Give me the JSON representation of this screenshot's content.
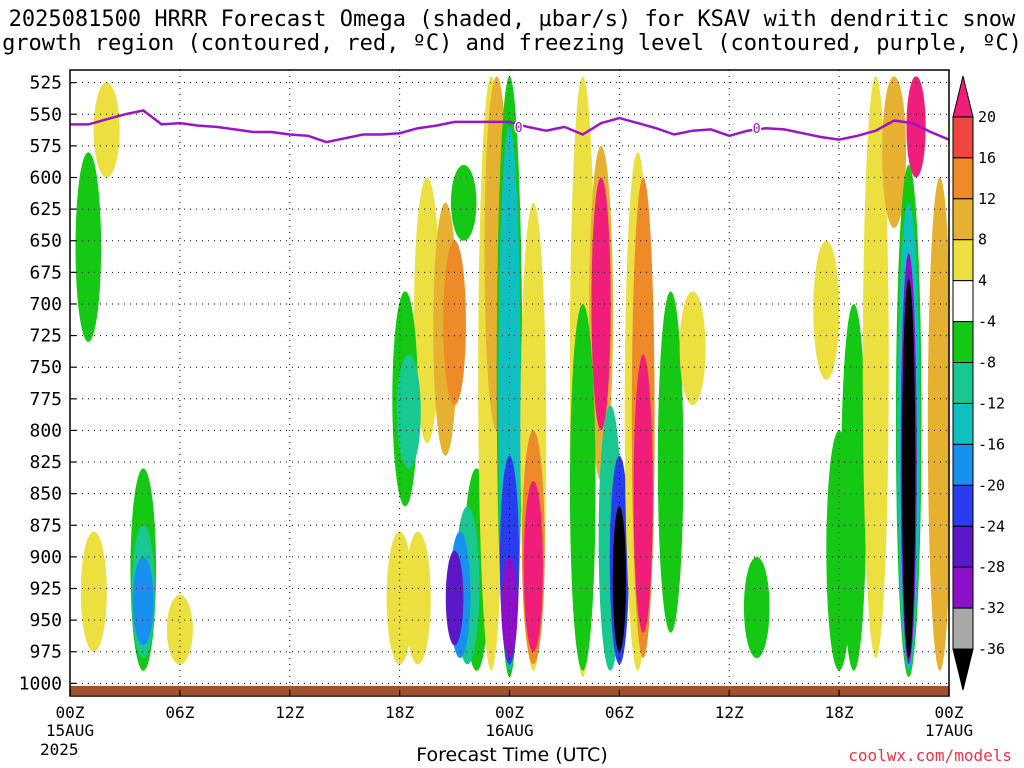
{
  "title_line1": "2025081500 HRRR Forecast Omega (shaded, µbar/s) for KSAV with dendritic snow",
  "title_line2": "growth region (contoured, red, ºC) and freezing level (contoured, purple, ºC)",
  "x_title": "Forecast Time (UTC)",
  "credit": "coolwx.com/models",
  "chart_data": {
    "type": "heatmap",
    "title": "2025081500 HRRR Forecast Omega (shaded, µbar/s) for KSAV with dendritic snow growth region (contoured, red, ºC) and freezing level (contoured, purple, ºC)",
    "xlabel": "Forecast Time (UTC)",
    "ylabel": "",
    "y_scale": "pressure (hPa), decreasing upward",
    "y_ticks": [
      525,
      550,
      575,
      600,
      625,
      650,
      675,
      700,
      725,
      750,
      775,
      800,
      825,
      850,
      875,
      900,
      925,
      950,
      975,
      1000
    ],
    "ylim": [
      1010,
      515
    ],
    "x_ticks_hours": [
      0,
      6,
      12,
      18,
      24,
      30,
      36,
      42,
      48
    ],
    "x_tick_labels": [
      "00Z",
      "06Z",
      "12Z",
      "18Z",
      "00Z",
      "06Z",
      "12Z",
      "18Z",
      "00Z"
    ],
    "x_tick_sublabels": [
      "15AUG",
      "",
      "",
      "",
      "16AUG",
      "",
      "",
      "",
      "17AUG"
    ],
    "x_tick_year": "2025",
    "xlim": [
      0,
      48
    ],
    "grid": true,
    "colorbar": {
      "levels": [
        -36,
        -32,
        -28,
        -24,
        -20,
        -16,
        -12,
        -8,
        -4,
        4,
        8,
        12,
        16,
        20
      ],
      "colors": [
        "#000000",
        "#a8a8a8",
        "#8c10c8",
        "#5a18c8",
        "#2a3cf0",
        "#1890f0",
        "#10c0c0",
        "#18c890",
        "#14c814",
        "#ffffff",
        "#ece040",
        "#e6b030",
        "#ee8a28",
        "#f04640",
        "#f01e7a"
      ]
    },
    "freezing_level": {
      "label_values": [
        "0",
        "0"
      ],
      "x_hours": [
        0,
        1,
        2,
        3,
        4,
        5,
        6,
        7,
        8,
        9,
        10,
        11,
        12,
        13,
        14,
        15,
        16,
        17,
        18,
        19,
        20,
        21,
        22,
        23,
        24,
        25,
        26,
        27,
        28,
        29,
        30,
        31,
        32,
        33,
        34,
        35,
        36,
        37,
        38,
        39,
        40,
        41,
        42,
        43,
        44,
        45,
        46,
        47,
        48
      ],
      "pressure_hpa": [
        558,
        558,
        554,
        550,
        547,
        558,
        557,
        559,
        560,
        562,
        564,
        564,
        566,
        567,
        572,
        569,
        566,
        566,
        565,
        561,
        559,
        556,
        556,
        556,
        556,
        560,
        563,
        560,
        566,
        557,
        553,
        557,
        561,
        566,
        563,
        562,
        567,
        563,
        561,
        562,
        565,
        568,
        570,
        567,
        563,
        555,
        557,
        564,
        570
      ]
    },
    "omega_cells": [
      {
        "hour": 2.0,
        "p_top": 525,
        "p_bot": 600,
        "value": 5
      },
      {
        "hour": 1.0,
        "p_top": 580,
        "p_bot": 730,
        "value": -6
      },
      {
        "hour": 1.3,
        "p_top": 880,
        "p_bot": 975,
        "value": 5
      },
      {
        "hour": 4.0,
        "p_top": 830,
        "p_bot": 990,
        "value": -6
      },
      {
        "hour": 4.0,
        "p_top": 875,
        "p_bot": 980,
        "value": -12
      },
      {
        "hour": 4.0,
        "p_top": 900,
        "p_bot": 970,
        "value": -18
      },
      {
        "hour": 6.0,
        "p_top": 930,
        "p_bot": 985,
        "value": 5
      },
      {
        "hour": 18.0,
        "p_top": 880,
        "p_bot": 985,
        "value": 5
      },
      {
        "hour": 19.5,
        "p_top": 600,
        "p_bot": 810,
        "value": 5
      },
      {
        "hour": 20.5,
        "p_top": 620,
        "p_bot": 820,
        "value": 9
      },
      {
        "hour": 21.0,
        "p_top": 650,
        "p_bot": 780,
        "value": 13
      },
      {
        "hour": 18.3,
        "p_top": 690,
        "p_bot": 860,
        "value": -6
      },
      {
        "hour": 18.5,
        "p_top": 740,
        "p_bot": 830,
        "value": -10
      },
      {
        "hour": 19.0,
        "p_top": 880,
        "p_bot": 985,
        "value": 6
      },
      {
        "hour": 21.5,
        "p_top": 590,
        "p_bot": 650,
        "value": -6
      },
      {
        "hour": 22.2,
        "p_top": 830,
        "p_bot": 990,
        "value": -6
      },
      {
        "hour": 21.7,
        "p_top": 860,
        "p_bot": 985,
        "value": -10
      },
      {
        "hour": 21.3,
        "p_top": 880,
        "p_bot": 980,
        "value": -18
      },
      {
        "hour": 21.0,
        "p_top": 895,
        "p_bot": 970,
        "value": -26
      },
      {
        "hour": 23.0,
        "p_top": 520,
        "p_bot": 990,
        "value": 5
      },
      {
        "hour": 23.3,
        "p_top": 520,
        "p_bot": 800,
        "value": 9
      },
      {
        "hour": 24.0,
        "p_top": 520,
        "p_bot": 995,
        "value": -6
      },
      {
        "hour": 24.0,
        "p_top": 560,
        "p_bot": 990,
        "value": -14
      },
      {
        "hour": 24.0,
        "p_top": 820,
        "p_bot": 985,
        "value": -22
      },
      {
        "hour": 24.0,
        "p_top": 900,
        "p_bot": 980,
        "value": -30
      },
      {
        "hour": 25.3,
        "p_top": 620,
        "p_bot": 990,
        "value": 5
      },
      {
        "hour": 25.3,
        "p_top": 800,
        "p_bot": 985,
        "value": 13
      },
      {
        "hour": 25.3,
        "p_top": 840,
        "p_bot": 975,
        "value": 22
      },
      {
        "hour": 28.0,
        "p_top": 520,
        "p_bot": 995,
        "value": 5
      },
      {
        "hour": 29.0,
        "p_top": 575,
        "p_bot": 840,
        "value": 10
      },
      {
        "hour": 29.0,
        "p_top": 600,
        "p_bot": 800,
        "value": 22
      },
      {
        "hour": 28.0,
        "p_top": 700,
        "p_bot": 990,
        "value": -6
      },
      {
        "hour": 29.5,
        "p_top": 780,
        "p_bot": 990,
        "value": -12
      },
      {
        "hour": 30.0,
        "p_top": 820,
        "p_bot": 985,
        "value": -22
      },
      {
        "hour": 30.0,
        "p_top": 860,
        "p_bot": 975,
        "value": -37
      },
      {
        "hour": 31.0,
        "p_top": 580,
        "p_bot": 990,
        "value": 5
      },
      {
        "hour": 31.3,
        "p_top": 600,
        "p_bot": 980,
        "value": 13
      },
      {
        "hour": 31.3,
        "p_top": 740,
        "p_bot": 960,
        "value": 22
      },
      {
        "hour": 32.8,
        "p_top": 690,
        "p_bot": 960,
        "value": -6
      },
      {
        "hour": 34.0,
        "p_top": 690,
        "p_bot": 780,
        "value": 5
      },
      {
        "hour": 37.5,
        "p_top": 900,
        "p_bot": 980,
        "value": -6
      },
      {
        "hour": 41.3,
        "p_top": 650,
        "p_bot": 760,
        "value": 5
      },
      {
        "hour": 42.0,
        "p_top": 800,
        "p_bot": 990,
        "value": -6
      },
      {
        "hour": 42.8,
        "p_top": 700,
        "p_bot": 990,
        "value": -6
      },
      {
        "hour": 44.0,
        "p_top": 520,
        "p_bot": 980,
        "value": 5
      },
      {
        "hour": 45.0,
        "p_top": 520,
        "p_bot": 640,
        "value": 10
      },
      {
        "hour": 46.2,
        "p_top": 520,
        "p_bot": 600,
        "value": 22
      },
      {
        "hour": 45.8,
        "p_top": 590,
        "p_bot": 995,
        "value": -6
      },
      {
        "hour": 45.8,
        "p_top": 620,
        "p_bot": 990,
        "value": -14
      },
      {
        "hour": 45.8,
        "p_top": 660,
        "p_bot": 985,
        "value": -30
      },
      {
        "hour": 45.8,
        "p_top": 680,
        "p_bot": 980,
        "value": -37
      },
      {
        "hour": 47.5,
        "p_top": 600,
        "p_bot": 990,
        "value": 10
      }
    ]
  }
}
